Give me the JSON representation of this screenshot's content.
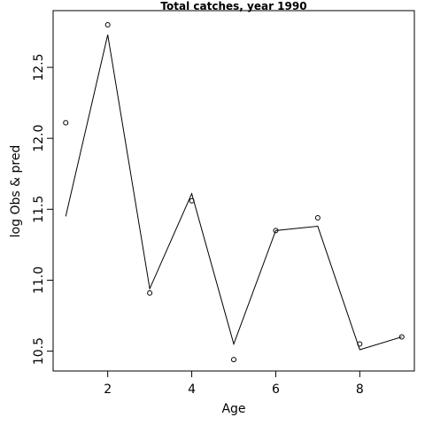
{
  "chart_data": {
    "type": "line",
    "title": "Total catches, year 1990",
    "xlabel": "Age",
    "ylabel": "log Obs & pred",
    "xlim": [
      0.7,
      9.3
    ],
    "ylim": [
      10.36,
      12.9
    ],
    "x_ticks": [
      2,
      4,
      6,
      8
    ],
    "y_ticks": [
      10.5,
      11.0,
      11.5,
      12.0,
      12.5
    ],
    "x_tick_labels": [
      "2",
      "4",
      "6",
      "8"
    ],
    "y_tick_labels": [
      "10.5",
      "11.0",
      "11.5",
      "12.0",
      "12.5"
    ],
    "grid": false,
    "legend": "none",
    "series": [
      {
        "role": "observed",
        "mark": "points",
        "x": [
          1,
          2,
          3,
          4,
          5,
          6,
          7,
          8,
          9
        ],
        "y": [
          12.11,
          12.8,
          10.91,
          11.56,
          10.44,
          11.35,
          11.44,
          10.55,
          10.6
        ]
      },
      {
        "role": "predicted",
        "mark": "line",
        "x": [
          1,
          2,
          3,
          4,
          5,
          6,
          7,
          8,
          9
        ],
        "y": [
          11.45,
          12.73,
          10.94,
          11.61,
          10.55,
          11.35,
          11.38,
          10.51,
          10.6
        ]
      }
    ]
  }
}
